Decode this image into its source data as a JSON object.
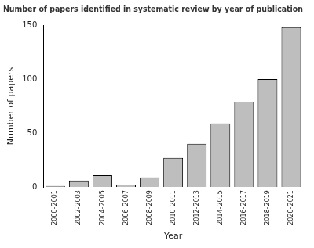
{
  "chart_data": {
    "type": "bar",
    "title": "Number of papers identified in systematic review by year of publication",
    "x_label": "Year",
    "y_label": "Number of papers",
    "categories": [
      "2000–2001",
      "2002–2003",
      "2004–2005",
      "2006–2007",
      "2008–2009",
      "2010–2011",
      "2012–2013",
      "2014–2015",
      "2016–2017",
      "2018–2019",
      "2020–2021"
    ],
    "values": [
      1,
      6,
      11,
      2,
      9,
      27,
      40,
      59,
      79,
      100,
      148
    ],
    "color": "#bebebe",
    "ylim": [
      0,
      150
    ],
    "yticks": [
      0,
      50,
      100,
      150
    ],
    "grid": false
  }
}
